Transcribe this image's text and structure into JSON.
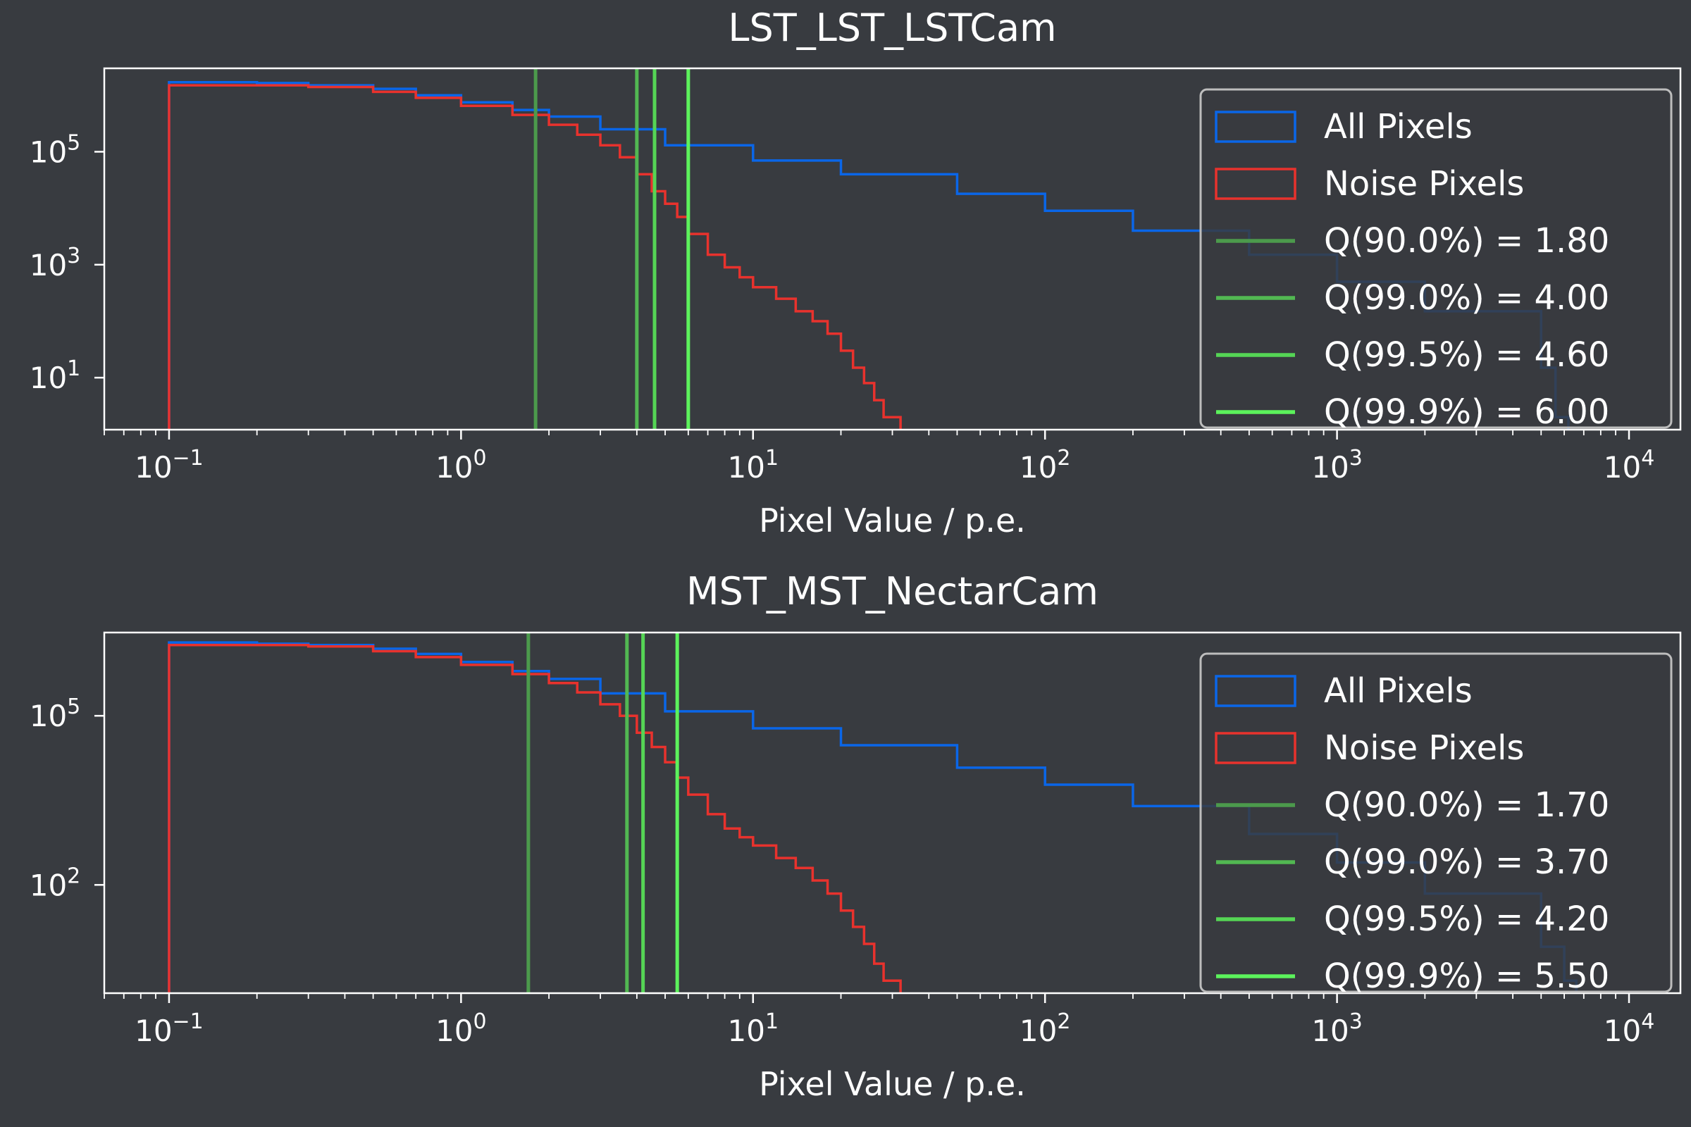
{
  "colors": {
    "background": "#383b40",
    "axes": "#ffffff",
    "all_pixels": "#0a66e8",
    "noise_pixels": "#e8322d",
    "q90": "#4c9a4c",
    "q99": "#52b852",
    "q995": "#55d555",
    "q999": "#5cf25c",
    "legend_edge": "#bdbdbd"
  },
  "chart_data": [
    {
      "type": "line",
      "subtype": "step-histogram",
      "title": "LST_LST_LSTCam",
      "xlabel": "Pixel Value / p.e.",
      "ylabel": "",
      "xscale": "log",
      "yscale": "log",
      "xlim": [
        0.06,
        15000
      ],
      "ylim": [
        1.2,
        3000000
      ],
      "xticks": [
        {
          "value": 0.1,
          "label": "10",
          "exp": "−1"
        },
        {
          "value": 1,
          "label": "10",
          "exp": "0"
        },
        {
          "value": 10,
          "label": "10",
          "exp": "1"
        },
        {
          "value": 100,
          "label": "10",
          "exp": "2"
        },
        {
          "value": 1000,
          "label": "10",
          "exp": "3"
        },
        {
          "value": 10000,
          "label": "10",
          "exp": "4"
        }
      ],
      "yticks": [
        {
          "value": 10,
          "label": "10",
          "exp": "1"
        },
        {
          "value": 1000,
          "label": "10",
          "exp": "3"
        },
        {
          "value": 100000,
          "label": "10",
          "exp": "5"
        }
      ],
      "grid": false,
      "legend": "upper right",
      "series": [
        {
          "name": "All Pixels",
          "kind": "step",
          "color_key": "all_pixels",
          "x": [
            0.1,
            0.2,
            0.3,
            0.5,
            0.7,
            1.0,
            1.5,
            2.0,
            3.0,
            5.0,
            10,
            20,
            50,
            100,
            200,
            500,
            1000,
            2000,
            5000,
            5600,
            6200
          ],
          "y": [
            1700000,
            1650000,
            1500000,
            1300000,
            1000000,
            750000,
            550000,
            420000,
            250000,
            130000,
            70000,
            40000,
            18000,
            9000,
            4000,
            1500,
            500,
            150,
            15,
            2,
            2
          ]
        },
        {
          "name": "Noise Pixels",
          "kind": "step",
          "color_key": "noise_pixels",
          "x": [
            0.1,
            0.2,
            0.3,
            0.5,
            0.7,
            1.0,
            1.5,
            2.0,
            2.5,
            3.0,
            3.5,
            4.0,
            4.5,
            5.0,
            5.5,
            6.0,
            7.0,
            8.0,
            9.0,
            10,
            12,
            14,
            16,
            18,
            20,
            22,
            24,
            26,
            28,
            32
          ],
          "y": [
            1500000,
            1500000,
            1400000,
            1150000,
            900000,
            650000,
            450000,
            300000,
            200000,
            130000,
            80000,
            40000,
            20000,
            12000,
            7000,
            3500,
            1500,
            900,
            600,
            400,
            250,
            150,
            100,
            60,
            30,
            15,
            8,
            4,
            2,
            2
          ]
        }
      ],
      "vlines": [
        {
          "name": "Q(90.0%) = 1.80",
          "x": 1.8,
          "color_key": "q90"
        },
        {
          "name": "Q(99.0%) = 4.00",
          "x": 4.0,
          "color_key": "q99"
        },
        {
          "name": "Q(99.5%) = 4.60",
          "x": 4.6,
          "color_key": "q995"
        },
        {
          "name": "Q(99.9%) = 6.00",
          "x": 6.0,
          "color_key": "q999"
        }
      ]
    },
    {
      "type": "line",
      "subtype": "step-histogram",
      "title": "MST_MST_NectarCam",
      "xlabel": "Pixel Value / p.e.",
      "ylabel": "",
      "xscale": "log",
      "yscale": "log",
      "xlim": [
        0.06,
        15000
      ],
      "ylim": [
        1.2,
        3000000
      ],
      "xticks": [
        {
          "value": 0.1,
          "label": "10",
          "exp": "−1"
        },
        {
          "value": 1,
          "label": "10",
          "exp": "0"
        },
        {
          "value": 10,
          "label": "10",
          "exp": "1"
        },
        {
          "value": 100,
          "label": "10",
          "exp": "2"
        },
        {
          "value": 1000,
          "label": "10",
          "exp": "3"
        },
        {
          "value": 10000,
          "label": "10",
          "exp": "4"
        }
      ],
      "yticks": [
        {
          "value": 100,
          "label": "10",
          "exp": "2"
        },
        {
          "value": 100000,
          "label": "10",
          "exp": "5"
        }
      ],
      "grid": false,
      "legend": "upper right",
      "series": [
        {
          "name": "All Pixels",
          "kind": "step",
          "color_key": "all_pixels",
          "x": [
            0.1,
            0.2,
            0.3,
            0.5,
            0.7,
            1.0,
            1.5,
            2.0,
            3.0,
            5.0,
            10,
            20,
            50,
            100,
            200,
            500,
            1000,
            2000,
            5000,
            6000,
            6600
          ],
          "y": [
            2000000,
            1900000,
            1800000,
            1550000,
            1250000,
            900000,
            620000,
            450000,
            250000,
            120000,
            60000,
            30000,
            12000,
            6000,
            2500,
            800,
            250,
            70,
            8,
            2,
            2
          ]
        },
        {
          "name": "Noise Pixels",
          "kind": "step",
          "color_key": "noise_pixels",
          "x": [
            0.1,
            0.2,
            0.3,
            0.5,
            0.7,
            1.0,
            1.5,
            2.0,
            2.5,
            3.0,
            3.5,
            4.0,
            4.5,
            5.0,
            5.5,
            6.0,
            7.0,
            8.0,
            9.0,
            10,
            12,
            14,
            16,
            18,
            20,
            22,
            24,
            26,
            28,
            32
          ],
          "y": [
            1800000,
            1800000,
            1700000,
            1400000,
            1100000,
            800000,
            550000,
            380000,
            260000,
            160000,
            100000,
            50000,
            28000,
            15000,
            8000,
            4000,
            1800,
            1000,
            700,
            500,
            300,
            200,
            120,
            70,
            35,
            18,
            9,
            4,
            2,
            2
          ]
        }
      ],
      "vlines": [
        {
          "name": "Q(90.0%) = 1.70",
          "x": 1.7,
          "color_key": "q90"
        },
        {
          "name": "Q(99.0%) = 3.70",
          "x": 3.7,
          "color_key": "q99"
        },
        {
          "name": "Q(99.5%) = 4.20",
          "x": 4.2,
          "color_key": "q995"
        },
        {
          "name": "Q(99.9%) = 5.50",
          "x": 5.5,
          "color_key": "q999"
        }
      ]
    }
  ]
}
